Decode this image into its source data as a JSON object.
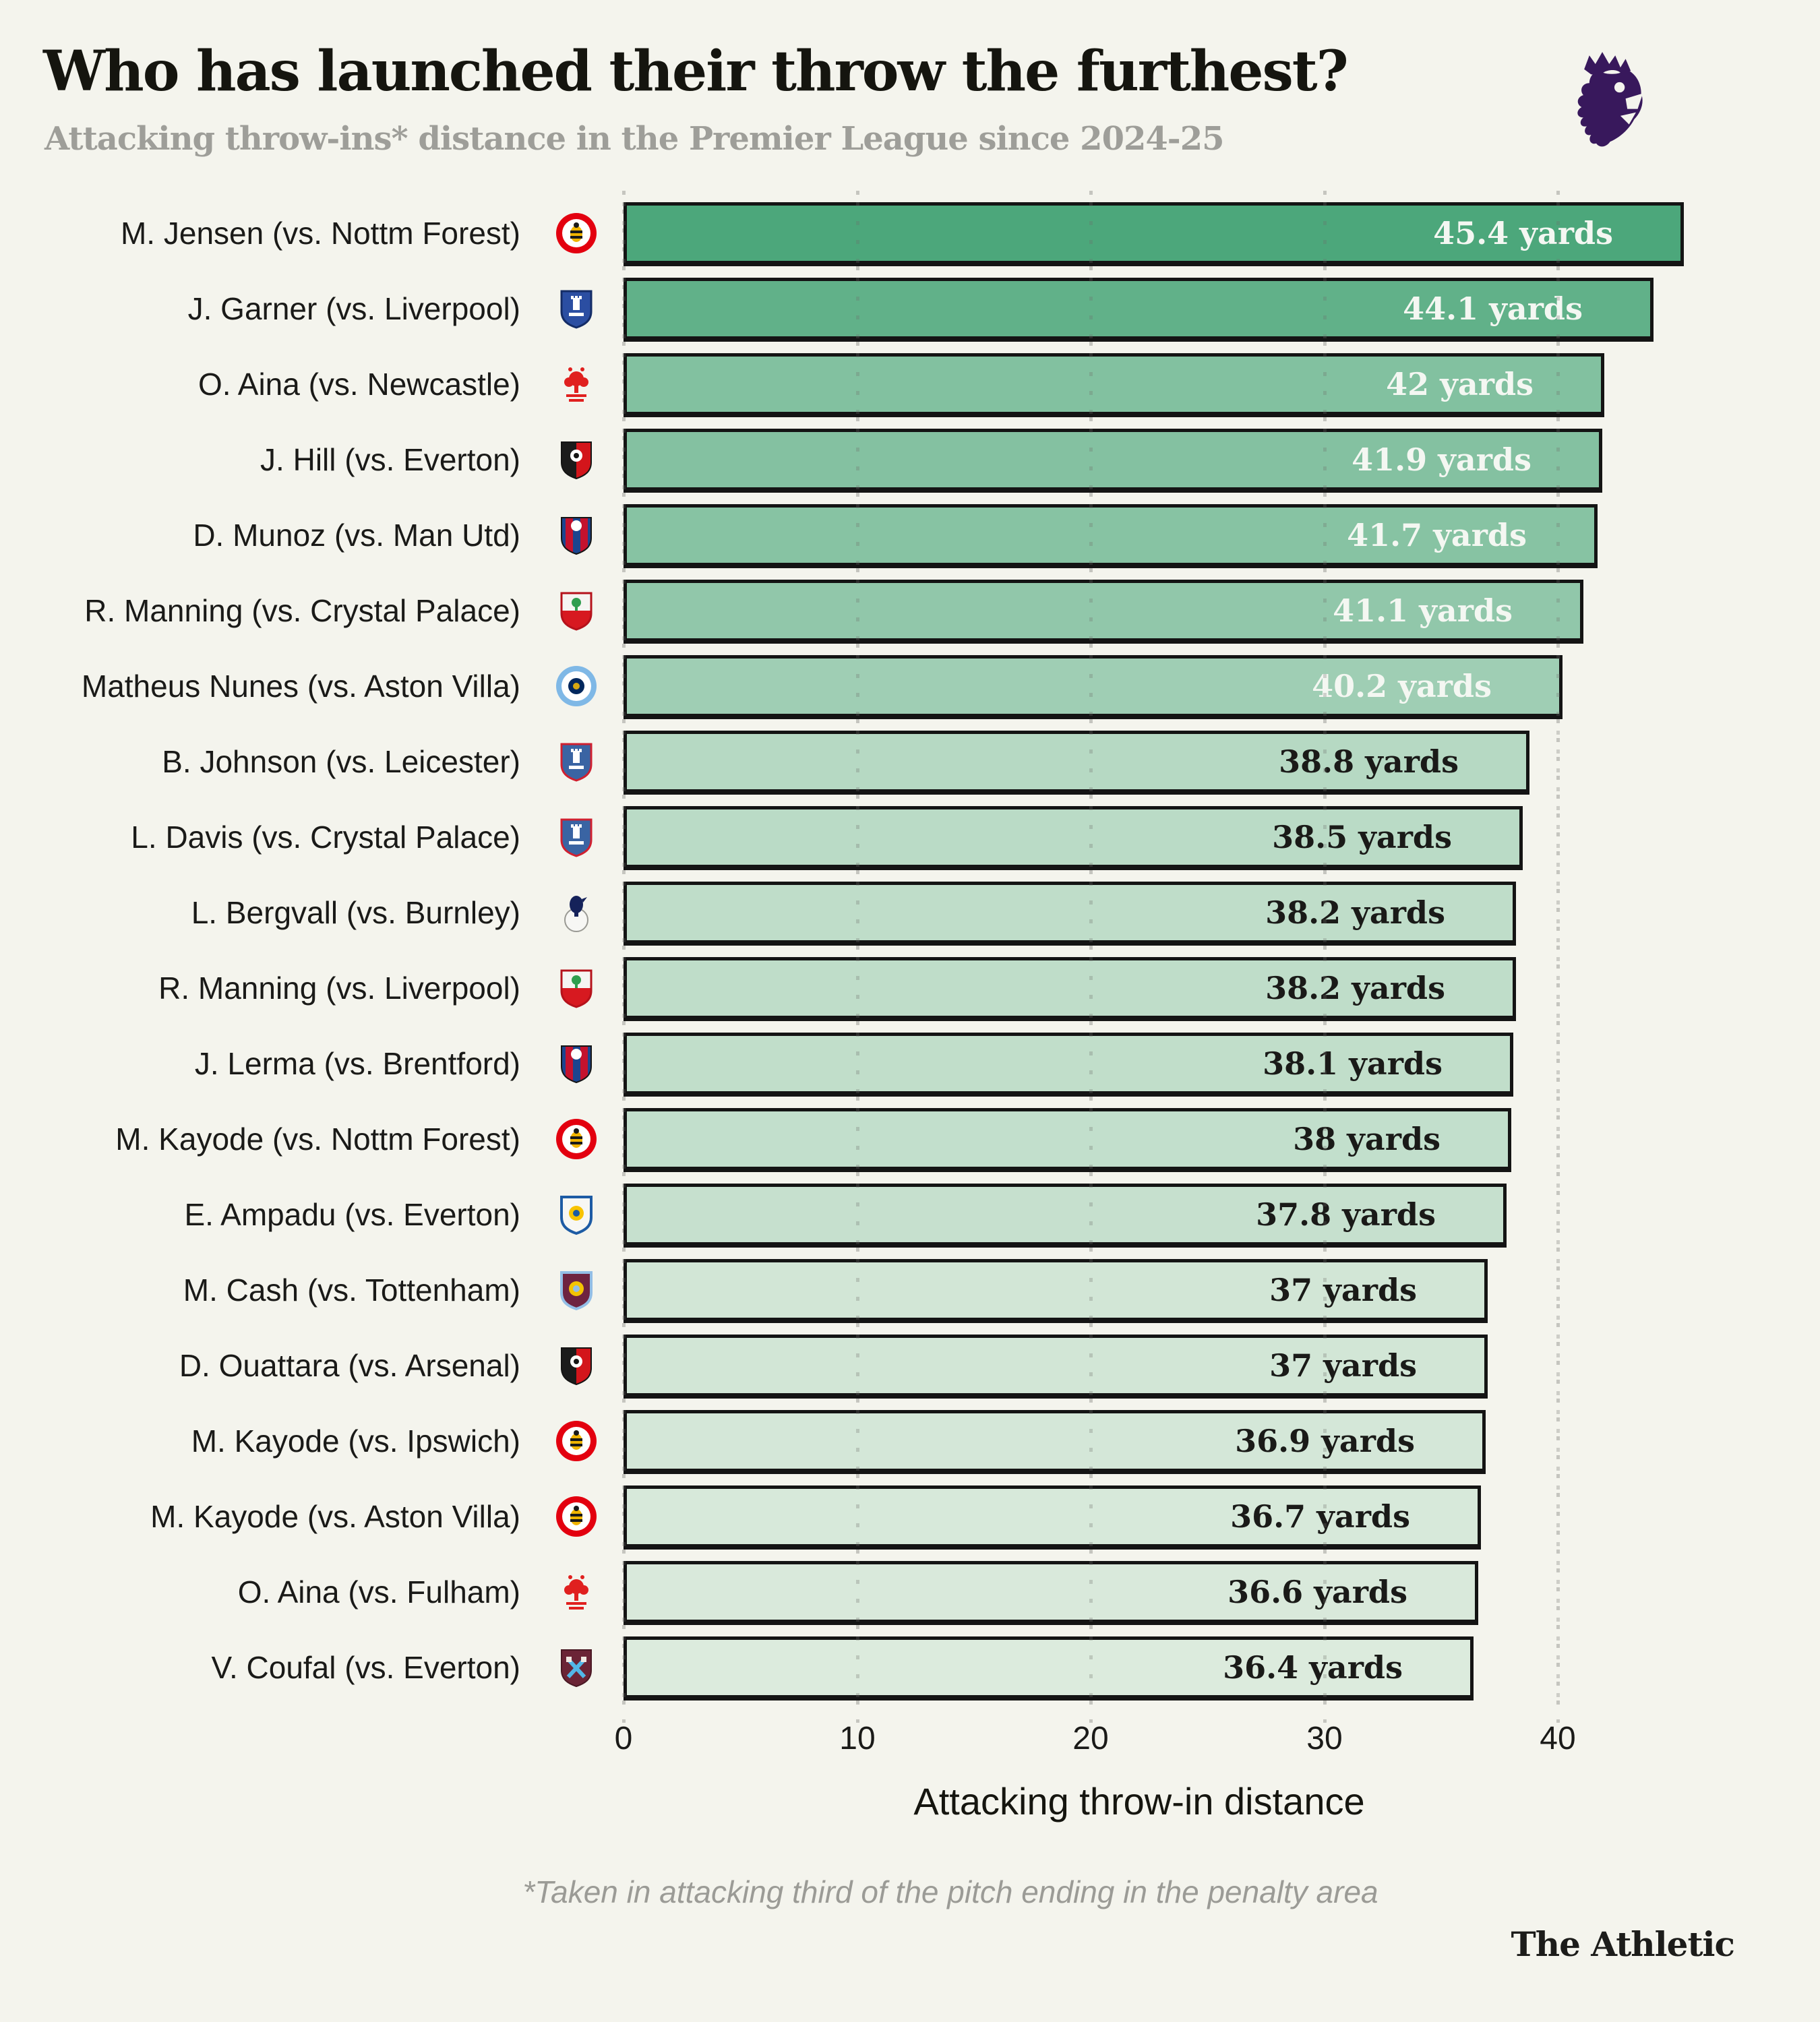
{
  "page": {
    "background": "#f4f4ed"
  },
  "header": {
    "title": "Who has launched their throw the furthest?",
    "subtitle": "Attacking throw-ins* distance in the Premier League since 2024-25",
    "league_logo": "premier-league-lion-icon",
    "league_logo_color": "#38185c"
  },
  "chart_data": {
    "type": "bar",
    "orientation": "horizontal",
    "unit": "yards",
    "xlabel": "Attacking throw-in distance",
    "xticks": [
      0,
      10,
      20,
      30,
      40
    ],
    "xlim": [
      0,
      48
    ],
    "grid": {
      "style": "dotted-vertical",
      "color": "#c5c5bf"
    },
    "bar_style": {
      "border_color": "#141414",
      "max_color": "#4ca77b",
      "min_color": "#dcebdd",
      "value_min": 36.4,
      "value_max": 45.4,
      "white_label_threshold": 40,
      "light_text_color": "#f4f7f2",
      "dark_text_color": "#1a1a18"
    },
    "rows": [
      {
        "player": "M. Jensen",
        "opponent": "Nottm Forest",
        "label": "M. Jensen (vs. Nottm Forest)",
        "club": "Brentford",
        "crest": "brentford",
        "value": 45.4,
        "value_label": "45.4 yards"
      },
      {
        "player": "J. Garner",
        "opponent": "Liverpool",
        "label": "J. Garner (vs. Liverpool)",
        "club": "Everton",
        "crest": "everton",
        "value": 44.1,
        "value_label": "44.1 yards"
      },
      {
        "player": "O. Aina",
        "opponent": "Newcastle",
        "label": "O. Aina (vs. Newcastle)",
        "club": "Nottingham Forest",
        "crest": "forest",
        "value": 42,
        "value_label": "42 yards"
      },
      {
        "player": "J. Hill",
        "opponent": "Everton",
        "label": "J. Hill (vs. Everton)",
        "club": "Bournemouth",
        "crest": "bournemouth",
        "value": 41.9,
        "value_label": "41.9 yards"
      },
      {
        "player": "D. Munoz",
        "opponent": "Man Utd",
        "label": "D. Munoz (vs. Man Utd)",
        "club": "Crystal Palace",
        "crest": "palace",
        "value": 41.7,
        "value_label": "41.7 yards"
      },
      {
        "player": "R. Manning",
        "opponent": "Crystal Palace",
        "label": "R. Manning (vs. Crystal Palace)",
        "club": "Southampton",
        "crest": "southampton",
        "value": 41.1,
        "value_label": "41.1 yards"
      },
      {
        "player": "Matheus Nunes",
        "opponent": "Aston Villa",
        "label": "Matheus Nunes (vs. Aston Villa)",
        "club": "Manchester City",
        "crest": "mancity",
        "value": 40.2,
        "value_label": "40.2 yards"
      },
      {
        "player": "B. Johnson",
        "opponent": "Leicester",
        "label": "B. Johnson (vs. Leicester)",
        "club": "Ipswich Town",
        "crest": "ipswich",
        "value": 38.8,
        "value_label": "38.8 yards"
      },
      {
        "player": "L. Davis",
        "opponent": "Crystal Palace",
        "label": "L. Davis (vs. Crystal Palace)",
        "club": "Ipswich Town",
        "crest": "ipswich",
        "value": 38.5,
        "value_label": "38.5 yards"
      },
      {
        "player": "L. Bergvall",
        "opponent": "Burnley",
        "label": "L. Bergvall (vs. Burnley)",
        "club": "Tottenham Hotspur",
        "crest": "spurs",
        "value": 38.2,
        "value_label": "38.2 yards"
      },
      {
        "player": "R. Manning",
        "opponent": "Liverpool",
        "label": "R. Manning (vs. Liverpool)",
        "club": "Southampton",
        "crest": "southampton",
        "value": 38.2,
        "value_label": "38.2 yards"
      },
      {
        "player": "J. Lerma",
        "opponent": "Brentford",
        "label": "J. Lerma (vs. Brentford)",
        "club": "Crystal Palace",
        "crest": "palace",
        "value": 38.1,
        "value_label": "38.1 yards"
      },
      {
        "player": "M. Kayode",
        "opponent": "Nottm Forest",
        "label": "M. Kayode (vs. Nottm Forest)",
        "club": "Brentford",
        "crest": "brentford",
        "value": 38,
        "value_label": "38 yards"
      },
      {
        "player": "E. Ampadu",
        "opponent": "Everton",
        "label": "E. Ampadu (vs. Everton)",
        "club": "Leeds United",
        "crest": "leeds",
        "value": 37.8,
        "value_label": "37.8 yards"
      },
      {
        "player": "M. Cash",
        "opponent": "Tottenham",
        "label": "M. Cash (vs. Tottenham)",
        "club": "Aston Villa",
        "crest": "villa",
        "value": 37,
        "value_label": "37 yards"
      },
      {
        "player": "D. Ouattara",
        "opponent": "Arsenal",
        "label": "D. Ouattara (vs. Arsenal)",
        "club": "Bournemouth",
        "crest": "bournemouth",
        "value": 37,
        "value_label": "37 yards"
      },
      {
        "player": "M. Kayode",
        "opponent": "Ipswich",
        "label": "M. Kayode (vs. Ipswich)",
        "club": "Brentford",
        "crest": "brentford",
        "value": 36.9,
        "value_label": "36.9 yards"
      },
      {
        "player": "M. Kayode",
        "opponent": "Aston Villa",
        "label": "M. Kayode (vs. Aston Villa)",
        "club": "Brentford",
        "crest": "brentford",
        "value": 36.7,
        "value_label": "36.7 yards"
      },
      {
        "player": "O. Aina",
        "opponent": "Fulham",
        "label": "O. Aina (vs. Fulham)",
        "club": "Nottingham Forest",
        "crest": "forest",
        "value": 36.6,
        "value_label": "36.6 yards"
      },
      {
        "player": "V. Coufal",
        "opponent": "Everton",
        "label": "V. Coufal (vs. Everton)",
        "club": "West Ham United",
        "crest": "westham",
        "value": 36.4,
        "value_label": "36.4 yards"
      }
    ]
  },
  "crests": {
    "brentford": {
      "shape": "circle-bee",
      "colors": [
        "#e3000f",
        "#ffffff",
        "#f0b400",
        "#1a1a1a"
      ]
    },
    "everton": {
      "shape": "shield-tower",
      "colors": [
        "#2b4ea2",
        "#142c66",
        "#ffffff"
      ]
    },
    "forest": {
      "shape": "tree",
      "colors": [
        "#e0201f"
      ]
    },
    "bournemouth": {
      "shape": "shield-halves",
      "colors": [
        "#1b1b1b",
        "#d3151b",
        "#ffffff"
      ]
    },
    "palace": {
      "shape": "shield-stripes",
      "colors": [
        "#1b458f",
        "#c4122e",
        "#ffffff"
      ]
    },
    "southampton": {
      "shape": "shield-horiz",
      "colors": [
        "#f5f5f2",
        "#d71920",
        "#2f9e4f"
      ]
    },
    "mancity": {
      "shape": "circle-ring",
      "colors": [
        "#7fb8e6",
        "#ffffff",
        "#00275d",
        "#d4a712"
      ]
    },
    "ipswich": {
      "shape": "shield-tower",
      "colors": [
        "#3a64a3",
        "#cf2030",
        "#ffffff"
      ]
    },
    "spurs": {
      "shape": "ball-bird",
      "colors": [
        "#f7f7f4",
        "#15225a"
      ]
    },
    "leeds": {
      "shape": "shield-dot",
      "colors": [
        "#f7f7f4",
        "#1d5ba4",
        "#f8c300"
      ]
    },
    "villa": {
      "shape": "shield-dot",
      "colors": [
        "#6e2340",
        "#93bee6",
        "#f3c403"
      ]
    },
    "westham": {
      "shape": "hammers",
      "colors": [
        "#6b2436",
        "#52b7e8",
        "#f0e9e2"
      ]
    }
  },
  "footer": {
    "footnote": "*Taken in attacking third of the pitch ending in the penalty area",
    "wordmark": "The Athletic"
  }
}
